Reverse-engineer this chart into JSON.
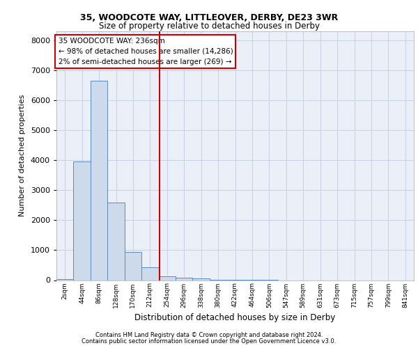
{
  "title1": "35, WOODCOTE WAY, LITTLEOVER, DERBY, DE23 3WR",
  "title2": "Size of property relative to detached houses in Derby",
  "xlabel": "Distribution of detached houses by size in Derby",
  "ylabel": "Number of detached properties",
  "bin_labels": [
    "2sqm",
    "44sqm",
    "86sqm",
    "128sqm",
    "170sqm",
    "212sqm",
    "254sqm",
    "296sqm",
    "338sqm",
    "380sqm",
    "422sqm",
    "464sqm",
    "506sqm",
    "547sqm",
    "589sqm",
    "631sqm",
    "673sqm",
    "715sqm",
    "757sqm",
    "799sqm",
    "841sqm"
  ],
  "bar_values": [
    25,
    3950,
    6650,
    2600,
    950,
    430,
    120,
    80,
    60,
    20,
    5,
    2,
    1,
    0,
    0,
    0,
    0,
    0,
    0,
    0,
    0
  ],
  "bar_color": "#ccdaeb",
  "bar_edgecolor": "#5a8abf",
  "grid_color": "#c8d4e4",
  "bg_color": "#eaeff8",
  "vline_color": "#cc0000",
  "annotation_title": "35 WOODCOTE WAY: 236sqm",
  "annotation_line1": "← 98% of detached houses are smaller (14,286)",
  "annotation_line2": "2% of semi-detached houses are larger (269) →",
  "annotation_box_color": "#ffffff",
  "annotation_border_color": "#cc0000",
  "footer1": "Contains HM Land Registry data © Crown copyright and database right 2024.",
  "footer2": "Contains public sector information licensed under the Open Government Licence v3.0.",
  "ylim": [
    0,
    8300
  ],
  "yticks": [
    0,
    1000,
    2000,
    3000,
    4000,
    5000,
    6000,
    7000,
    8000
  ]
}
